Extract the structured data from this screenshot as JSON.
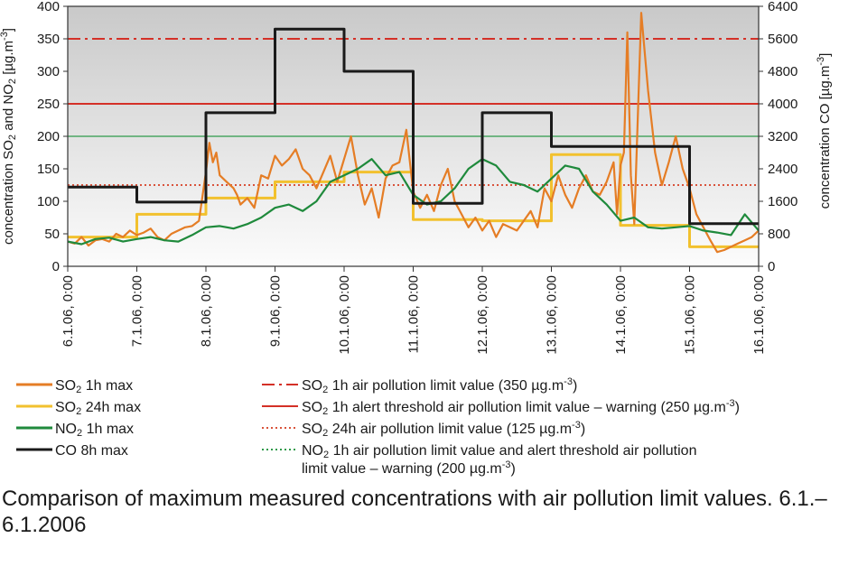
{
  "caption": "Comparison of maximum measured concentrations with air pollution limit values. 6.1.–6.1.2006",
  "chart_data": {
    "type": "line",
    "x_tick_labels": [
      "6.1.06, 0:00",
      "7.1.06, 0:00",
      "8.1.06, 0:00",
      "9.1.06, 0:00",
      "10.1.06, 0:00",
      "11.1.06, 0:00",
      "12.1.06, 0:00",
      "13.1.06, 0:00",
      "14.1.06, 0:00",
      "15.1.06, 0:00",
      "16.1.06, 0:00"
    ],
    "x_unit": "days from 6.1.06, 0:00",
    "y_left": {
      "label_parts": [
        [
          "concentration SO",
          ""
        ],
        [
          "2",
          "sub"
        ],
        [
          " and NO",
          ""
        ],
        [
          "2",
          "sub"
        ],
        [
          " [µg.m",
          ""
        ],
        [
          "-3",
          "sup"
        ],
        [
          "]",
          ""
        ]
      ],
      "ylim": [
        0,
        400
      ],
      "ticks": [
        0,
        50,
        100,
        150,
        200,
        250,
        300,
        350,
        400
      ]
    },
    "y_right": {
      "label_parts": [
        [
          "concentration CO [µg.m",
          ""
        ],
        [
          "-3",
          "sup"
        ],
        [
          "]",
          ""
        ]
      ],
      "ylim": [
        0,
        6400
      ],
      "ticks": [
        0,
        800,
        1600,
        2400,
        3200,
        4000,
        4800,
        5600,
        6400
      ]
    },
    "series": [
      {
        "name_parts": [
          [
            "SO",
            ""
          ],
          [
            "2",
            "sub"
          ],
          [
            " 1h max",
            ""
          ]
        ],
        "color": "#e57d25",
        "axis": "left",
        "x": [
          0,
          0.1,
          0.2,
          0.3,
          0.4,
          0.5,
          0.6,
          0.7,
          0.8,
          0.9,
          1.0,
          1.1,
          1.2,
          1.3,
          1.4,
          1.5,
          1.6,
          1.7,
          1.8,
          1.9,
          2.0,
          2.05,
          2.1,
          2.15,
          2.2,
          2.3,
          2.4,
          2.45,
          2.5,
          2.6,
          2.7,
          2.8,
          2.9,
          3.0,
          3.1,
          3.2,
          3.3,
          3.4,
          3.5,
          3.6,
          3.7,
          3.8,
          3.9,
          4.0,
          4.1,
          4.2,
          4.3,
          4.4,
          4.5,
          4.6,
          4.7,
          4.8,
          4.9,
          5.0,
          5.1,
          5.2,
          5.3,
          5.4,
          5.5,
          5.6,
          5.7,
          5.8,
          5.9,
          6.0,
          6.1,
          6.2,
          6.3,
          6.4,
          6.5,
          6.6,
          6.7,
          6.8,
          6.9,
          7.0,
          7.1,
          7.2,
          7.3,
          7.4,
          7.5,
          7.6,
          7.7,
          7.8,
          7.9,
          7.95,
          8.0,
          8.05,
          8.1,
          8.15,
          8.2,
          8.3,
          8.4,
          8.5,
          8.6,
          8.7,
          8.8,
          8.9,
          9.0,
          9.1,
          9.2,
          9.3,
          9.4,
          9.5,
          9.6,
          9.7,
          9.8,
          9.9,
          10.0
        ],
        "y": [
          38,
          35,
          45,
          32,
          40,
          42,
          38,
          50,
          45,
          55,
          48,
          52,
          58,
          45,
          40,
          50,
          55,
          60,
          62,
          70,
          145,
          190,
          160,
          175,
          140,
          130,
          120,
          110,
          95,
          105,
          90,
          140,
          135,
          170,
          155,
          165,
          180,
          150,
          140,
          120,
          145,
          170,
          130,
          165,
          200,
          140,
          95,
          120,
          75,
          135,
          155,
          160,
          210,
          115,
          90,
          110,
          85,
          125,
          150,
          100,
          80,
          60,
          75,
          55,
          70,
          45,
          65,
          60,
          55,
          70,
          85,
          60,
          120,
          100,
          140,
          110,
          90,
          120,
          140,
          115,
          110,
          130,
          160,
          80,
          155,
          175,
          360,
          140,
          65,
          390,
          270,
          175,
          125,
          160,
          200,
          150,
          120,
          80,
          60,
          40,
          22,
          25,
          30,
          35,
          40,
          45,
          55
        ],
        "source": "approximate"
      },
      {
        "name_parts": [
          [
            "SO",
            ""
          ],
          [
            "2",
            "sub"
          ],
          [
            " 24h max",
            ""
          ]
        ],
        "color": "#f2c12e",
        "axis": "left",
        "step": true,
        "x": [
          0,
          1,
          2,
          3,
          4,
          5,
          6,
          7,
          8,
          9,
          10
        ],
        "y": [
          45,
          80,
          105,
          130,
          145,
          72,
          70,
          172,
          63,
          30,
          30
        ]
      },
      {
        "name_parts": [
          [
            "NO",
            ""
          ],
          [
            "2",
            "sub"
          ],
          [
            " 1h max",
            ""
          ]
        ],
        "color": "#1f8a3c",
        "axis": "left",
        "x": [
          0,
          0.2,
          0.4,
          0.6,
          0.8,
          1.0,
          1.2,
          1.4,
          1.6,
          1.8,
          2.0,
          2.2,
          2.4,
          2.6,
          2.8,
          3.0,
          3.2,
          3.4,
          3.6,
          3.8,
          4.0,
          4.2,
          4.4,
          4.6,
          4.8,
          5.0,
          5.2,
          5.4,
          5.6,
          5.8,
          6.0,
          6.2,
          6.4,
          6.6,
          6.8,
          7.0,
          7.2,
          7.4,
          7.6,
          7.8,
          8.0,
          8.2,
          8.4,
          8.6,
          8.8,
          9.0,
          9.2,
          9.4,
          9.6,
          9.8,
          10.0
        ],
        "y": [
          38,
          34,
          42,
          44,
          38,
          42,
          45,
          40,
          38,
          48,
          60,
          62,
          58,
          65,
          75,
          90,
          95,
          85,
          100,
          130,
          140,
          150,
          165,
          140,
          145,
          110,
          95,
          100,
          120,
          150,
          165,
          155,
          130,
          125,
          115,
          135,
          155,
          150,
          115,
          95,
          70,
          75,
          60,
          58,
          60,
          62,
          55,
          52,
          48,
          80,
          55
        ]
      },
      {
        "name_parts": [
          [
            "CO 8h max",
            ""
          ]
        ],
        "color": "#1a1a1a",
        "axis": "right",
        "step": true,
        "x": [
          0,
          1,
          2,
          3,
          4,
          5,
          6,
          7,
          8,
          9,
          10
        ],
        "y": [
          1950,
          1580,
          3780,
          5840,
          4800,
          1550,
          3780,
          2950,
          2950,
          1050,
          1050
        ]
      }
    ],
    "limit_lines": [
      {
        "value": 350,
        "color": "#d43027",
        "dash": "dash-dot",
        "label_parts": [
          [
            "SO",
            ""
          ],
          [
            "2",
            "sub"
          ],
          [
            " 1h air pollution limit value  (350 µg.m",
            ""
          ],
          [
            "-3",
            "sup"
          ],
          [
            ")",
            ""
          ]
        ]
      },
      {
        "value": 250,
        "color": "#d43027",
        "dash": "solid",
        "label_parts": [
          [
            "SO",
            ""
          ],
          [
            "2",
            "sub"
          ],
          [
            " 1h alert threshold air pollution limit value – warning (250 µg.m",
            ""
          ],
          [
            "-3",
            "sup"
          ],
          [
            ")",
            ""
          ]
        ]
      },
      {
        "value": 125,
        "color": "#d9533b",
        "dash": "dotted",
        "label_parts": [
          [
            "SO",
            ""
          ],
          [
            "2",
            "sub"
          ],
          [
            " 24h air pollution limit value (125 µg.m",
            ""
          ],
          [
            "-3",
            "sup"
          ],
          [
            ")",
            ""
          ]
        ]
      },
      {
        "value": 200,
        "color": "#2e9a4a",
        "dash": "solid-thin",
        "legend_dash": "dotted",
        "label_lines": [
          [
            [
              "NO",
              ""
            ],
            [
              "2",
              "sub"
            ],
            [
              " 1h air pollution limit value and alert threshold air pollution",
              ""
            ]
          ],
          [
            [
              "limit value – warning  (200 µg.m",
              ""
            ],
            [
              "-3",
              "sup"
            ],
            [
              ")",
              ""
            ]
          ]
        ]
      }
    ],
    "grid": false,
    "background": "vertical-gradient-gray",
    "legend_placement": "bottom"
  }
}
